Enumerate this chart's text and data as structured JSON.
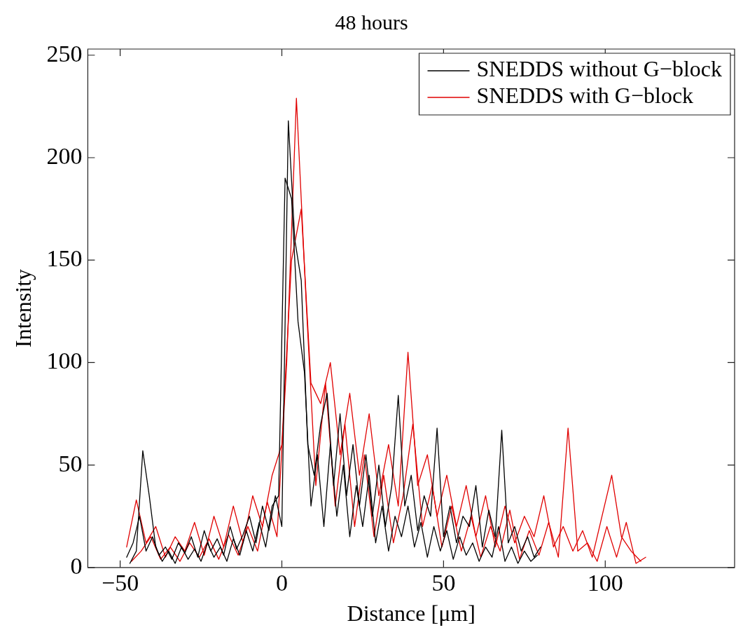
{
  "chart_data": {
    "type": "line",
    "title": "48 hours",
    "xlabel": "Distance [μm]",
    "ylabel": "Intensity",
    "xlim": [
      -60,
      140
    ],
    "xticks": [
      -50,
      0,
      50,
      100
    ],
    "ylim": [
      0,
      253
    ],
    "yticks": [
      0,
      50,
      100,
      150,
      200,
      250
    ],
    "grid": false,
    "legend": "top right",
    "marker": "none",
    "line_style": "solid",
    "series": [
      {
        "name": "SNEDDS without G−block",
        "color": "#000000",
        "x": [
          -48,
          -46,
          -44,
          -42,
          -40,
          -38,
          -36,
          -34,
          -32,
          -30,
          -28,
          -26,
          -24,
          -22,
          -20,
          -18,
          -16,
          -14,
          -12,
          -10,
          -8,
          -6,
          -4,
          -2,
          0,
          2,
          4,
          6,
          8,
          10,
          12,
          14,
          16,
          18,
          20,
          22,
          24,
          26,
          28,
          30,
          32,
          34,
          36,
          38,
          40,
          42,
          44,
          46,
          48,
          50,
          52,
          54,
          56,
          58,
          60,
          62,
          64,
          66,
          68,
          70,
          72,
          74,
          76,
          78,
          80
        ],
        "values": [
          5,
          12,
          25,
          8,
          15,
          6,
          10,
          4,
          12,
          7,
          15,
          5,
          18,
          8,
          14,
          6,
          20,
          9,
          16,
          25,
          12,
          30,
          18,
          35,
          20,
          218,
          160,
          140,
          60,
          45,
          70,
          85,
          40,
          75,
          35,
          60,
          30,
          55,
          25,
          50,
          20,
          40,
          84,
          30,
          45,
          18,
          35,
          25,
          68,
          15,
          30,
          12,
          25,
          20,
          40,
          10,
          28,
          15,
          67,
          12,
          20,
          8,
          15,
          5,
          10
        ]
      },
      {
        "color": "#000000",
        "x": [
          -47,
          -45,
          -43,
          -41,
          -39,
          -37,
          -35,
          -33,
          -31,
          -29,
          -27,
          -25,
          -23,
          -21,
          -19,
          -17,
          -15,
          -13,
          -11,
          -9,
          -7,
          -5,
          -3,
          -1,
          1,
          3,
          5,
          7,
          9,
          11,
          13,
          15,
          17,
          19,
          21,
          23,
          25,
          27,
          29,
          31,
          33,
          35,
          37,
          39,
          41,
          43,
          45,
          47,
          49,
          51,
          53,
          55,
          57,
          59,
          61,
          63,
          65,
          67,
          69,
          71,
          73,
          75,
          77,
          79
        ],
        "values": [
          2,
          8,
          57,
          35,
          10,
          3,
          8,
          2,
          10,
          4,
          9,
          3,
          12,
          5,
          10,
          3,
          14,
          6,
          18,
          8,
          22,
          10,
          30,
          35,
          190,
          180,
          120,
          95,
          30,
          55,
          20,
          60,
          25,
          50,
          15,
          40,
          20,
          45,
          12,
          30,
          8,
          25,
          15,
          30,
          10,
          22,
          5,
          20,
          8,
          18,
          4,
          15,
          6,
          12,
          3,
          10,
          5,
          20,
          3,
          10,
          2,
          8,
          3,
          6
        ]
      },
      {
        "name": "SNEDDS with G−block",
        "color": "#e00000",
        "x": [
          -48,
          -45,
          -42,
          -39,
          -36,
          -33,
          -30,
          -27,
          -24,
          -21,
          -18,
          -15,
          -12,
          -9,
          -6,
          -3,
          0,
          3,
          6,
          9,
          12,
          15,
          18,
          21,
          24,
          27,
          30,
          33,
          36,
          39,
          42,
          45,
          48,
          51,
          54,
          57,
          60,
          63,
          66,
          69,
          72,
          75,
          78,
          81,
          84,
          87,
          90,
          93,
          96,
          99,
          102,
          105,
          108,
          111
        ],
        "values": [
          10,
          33,
          12,
          20,
          5,
          15,
          8,
          22,
          6,
          25,
          10,
          30,
          12,
          35,
          20,
          45,
          60,
          150,
          175,
          90,
          80,
          100,
          55,
          85,
          45,
          75,
          35,
          60,
          30,
          105,
          40,
          55,
          25,
          45,
          20,
          40,
          15,
          35,
          10,
          30,
          12,
          25,
          15,
          35,
          10,
          20,
          8,
          18,
          5,
          25,
          45,
          15,
          8,
          3
        ]
      },
      {
        "color": "#e00000",
        "x": [
          -46.5,
          -43.5,
          -40.5,
          -37.5,
          -34.5,
          -31.5,
          -28.5,
          -25.5,
          -22.5,
          -19.5,
          -16.5,
          -13.5,
          -10.5,
          -7.5,
          -4.5,
          -1.5,
          1.5,
          4.5,
          7.5,
          10.5,
          13.5,
          16.5,
          19.5,
          22.5,
          25.5,
          28.5,
          31.5,
          34.5,
          37.5,
          40.5,
          43.5,
          46.5,
          49.5,
          52.5,
          55.5,
          58.5,
          61.5,
          64.5,
          67.5,
          70.5,
          73.5,
          76.5,
          79.5,
          82.5,
          85.5,
          88.5,
          91.5,
          94.5,
          97.5,
          100.5,
          103.5,
          106.5,
          109.5,
          112.5
        ],
        "values": [
          3,
          8,
          15,
          4,
          10,
          3,
          12,
          5,
          14,
          4,
          16,
          6,
          20,
          8,
          32,
          15,
          100,
          229,
          130,
          40,
          90,
          30,
          70,
          20,
          55,
          15,
          45,
          12,
          35,
          70,
          20,
          40,
          10,
          30,
          8,
          25,
          5,
          20,
          8,
          28,
          4,
          18,
          6,
          22,
          5,
          68,
          8,
          12,
          3,
          20,
          5,
          22,
          2,
          5
        ]
      }
    ]
  }
}
